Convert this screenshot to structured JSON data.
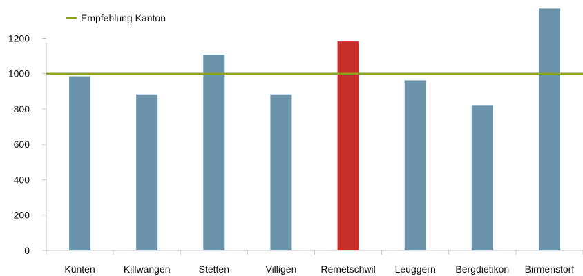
{
  "chart_data": {
    "type": "bar",
    "categories": [
      "Künten",
      "Killwangen",
      "Stetten",
      "Villigen",
      "Remetschwil",
      "Leuggern",
      "Bergdietikon",
      "Birmenstorf"
    ],
    "values": [
      985,
      883,
      1108,
      883,
      1182,
      962,
      822,
      1368
    ],
    "highlight_category": "Remetschwil",
    "ylim": [
      0,
      1350
    ],
    "yticks": [
      0,
      200,
      400,
      600,
      800,
      1000,
      1200
    ],
    "reference_line": {
      "name": "Empfehlung Kanton",
      "value": 1000
    },
    "legend": {
      "entries": [
        "Empfehlung Kanton"
      ],
      "placement": "top-left"
    },
    "grid": false,
    "colors": {
      "bar": "#6b93ab",
      "highlight": "#c9302c",
      "reference_line": "#8ca21f",
      "axis": "#c0c0c0"
    }
  }
}
